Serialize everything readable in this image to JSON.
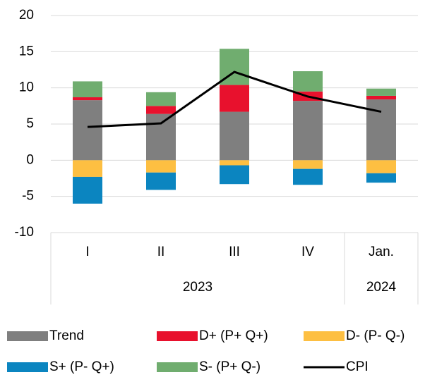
{
  "chart_data": {
    "type": "bar",
    "groups": [
      {
        "name": "2023",
        "categories": [
          "I",
          "II",
          "III",
          "IV"
        ]
      },
      {
        "name": "2024",
        "categories": [
          "Jan."
        ]
      }
    ],
    "ylim": [
      -10,
      20
    ],
    "yticks": [
      -10,
      -5,
      0,
      5,
      10,
      15,
      20
    ],
    "grid": true,
    "series": [
      {
        "name": "Trend",
        "color": "#7f7f7f",
        "values": [
          8.3,
          6.4,
          6.7,
          8.2,
          8.4
        ]
      },
      {
        "name": "D+ (P+ Q+)",
        "color": "#e8112d",
        "values": [
          0.4,
          1.1,
          3.7,
          1.3,
          0.5
        ]
      },
      {
        "name": "D- (P- Q-)",
        "color": "#fdbf42",
        "values": [
          -2.3,
          -1.7,
          -0.7,
          -1.2,
          -1.8
        ]
      },
      {
        "name": "S+ (P- Q+)",
        "color": "#0b85c0",
        "values": [
          -3.7,
          -2.4,
          -2.6,
          -2.2,
          -1.3
        ]
      },
      {
        "name": "S- (P+ Q-)",
        "color": "#70ad6f",
        "values": [
          2.2,
          1.9,
          5.0,
          2.8,
          1.0
        ]
      },
      {
        "name": "CPI",
        "color": "#000000",
        "type": "line",
        "values": [
          4.6,
          5.1,
          12.2,
          8.8,
          6.7
        ]
      }
    ]
  }
}
